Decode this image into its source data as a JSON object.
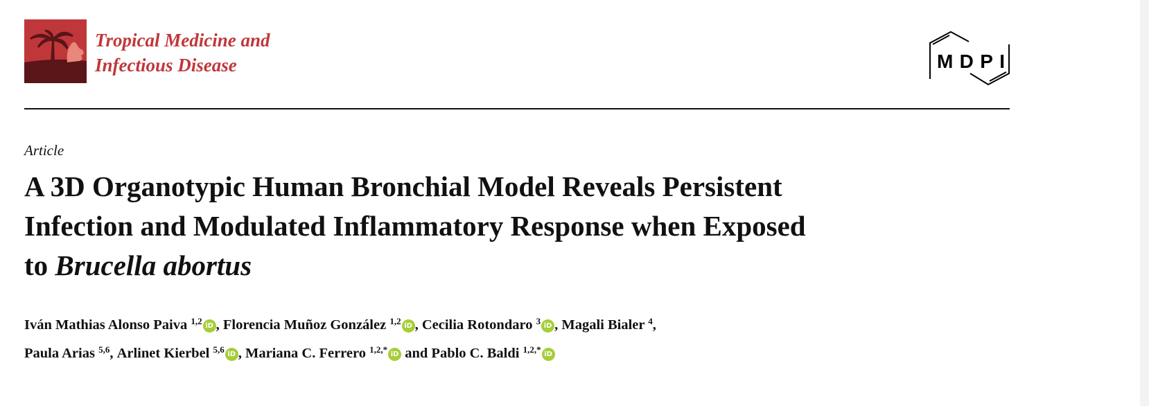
{
  "journal": {
    "name_line1": "Tropical Medicine and",
    "name_line2": "Infectious Disease",
    "brand_color": "#c0373a"
  },
  "publisher": {
    "logo_text": "MDPI"
  },
  "article_type": "Article",
  "title": {
    "line1": "A 3D Organotypic Human Bronchial Model Reveals Persistent",
    "line2": "Infection and Modulated Inflammatory Response when Exposed",
    "line3_plain": "to ",
    "line3_italic": "Brucella abortus"
  },
  "authors": [
    {
      "name": "Iván Mathias Alonso Paiva",
      "aff": "1,2",
      "orcid": true,
      "sep": ", "
    },
    {
      "name": "Florencia Muñoz González",
      "aff": "1,2",
      "orcid": true,
      "sep": ", "
    },
    {
      "name": "Cecilia Rotondaro",
      "aff": "3",
      "orcid": true,
      "sep": ", "
    },
    {
      "name": "Magali Bialer",
      "aff": "4",
      "orcid": false,
      "sep": ","
    },
    {
      "name": "Paula Arias",
      "aff": "5,6",
      "orcid": false,
      "sep": ", "
    },
    {
      "name": "Arlinet Kierbel",
      "aff": "5,6",
      "orcid": true,
      "sep": ", "
    },
    {
      "name": "Mariana C. Ferrero",
      "aff": "1,2,*",
      "orcid": true,
      "sep": " and "
    },
    {
      "name": "Pablo C. Baldi",
      "aff": "1,2,*",
      "orcid": true,
      "sep": ""
    }
  ],
  "orcid_icon": {
    "name": "orcid-icon",
    "text": "iD",
    "color": "#a6ce39"
  }
}
